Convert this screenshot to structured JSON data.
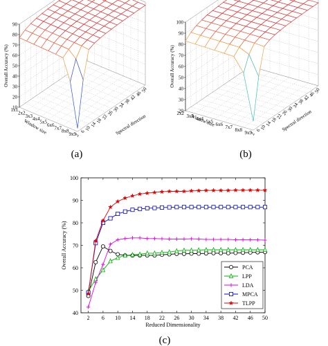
{
  "chart_data": [
    {
      "type": "surface",
      "caption": "(a)",
      "zlabel": "Overall Accuracy (%)",
      "xlabel": "Window size",
      "ylabel": "Spectral direction",
      "zlim": [
        10,
        90
      ],
      "z_ticks": [
        "10",
        "20",
        "30",
        "40",
        "50",
        "60",
        "70",
        "80",
        "90"
      ],
      "window_ticks": [
        "1x1",
        "2x2",
        "3x3",
        "4x4",
        "5x5",
        "6x6",
        "7x7",
        "8x8",
        "9x9"
      ],
      "spectral_ticks": [
        "2",
        "6",
        "10",
        "14",
        "18",
        "22",
        "26",
        "30",
        "34",
        "38",
        "42",
        "46",
        "50"
      ],
      "min_value": 13,
      "plateau_value": 87,
      "front_value": 77
    },
    {
      "type": "surface",
      "caption": "(b)",
      "zlabel": "Overall Accuracy (%)",
      "xlabel": "Window size",
      "ylabel": "Spectral direction",
      "zlim": [
        20,
        100
      ],
      "z_ticks": [
        "20",
        "30",
        "40",
        "50",
        "60",
        "70",
        "80",
        "90",
        "100"
      ],
      "window_ticks": [
        "2x2",
        "3x3",
        "4x4",
        "5x5",
        "6x6",
        "7x7",
        "8x8",
        "9x9"
      ],
      "spectral_ticks": [
        "2",
        "6",
        "10",
        "14",
        "18",
        "22",
        "26",
        "30",
        "34",
        "38",
        "42",
        "46",
        "50"
      ],
      "min_value": 28,
      "plateau_value": 95,
      "front_value": 83
    },
    {
      "type": "line",
      "caption": "(c)",
      "xlabel": "Reduced Dimensionality",
      "ylabel": "Overall Accuracy (%)",
      "xlim": [
        0,
        50
      ],
      "ylim": [
        40,
        100
      ],
      "x_ticks": [
        2,
        6,
        10,
        14,
        18,
        22,
        26,
        30,
        34,
        38,
        42,
        46,
        50
      ],
      "y_ticks": [
        40,
        50,
        60,
        70,
        80,
        90,
        100
      ],
      "grid": false,
      "legend_position": "bottom-right",
      "x": [
        2,
        4,
        6,
        8,
        10,
        12,
        14,
        16,
        18,
        20,
        22,
        24,
        26,
        28,
        30,
        32,
        34,
        36,
        38,
        40,
        42,
        44,
        46,
        48,
        50
      ],
      "series": [
        {
          "name": "PCA",
          "color": "#000000",
          "marker": "circle",
          "values": [
            47.5,
            62.5,
            69.5,
            67.5,
            66.0,
            65.5,
            65.5,
            65.5,
            65.5,
            65.5,
            65.8,
            66.0,
            66.2,
            66.2,
            66.3,
            66.3,
            66.4,
            66.5,
            66.5,
            66.5,
            66.6,
            66.7,
            66.8,
            66.9,
            67.0
          ]
        },
        {
          "name": "LPP",
          "color": "#00b000",
          "marker": "triangle",
          "values": [
            49.5,
            55.0,
            59.0,
            63.0,
            64.5,
            65.5,
            65.8,
            66.0,
            66.5,
            66.5,
            66.8,
            67.0,
            67.5,
            67.8,
            67.8,
            67.9,
            68.0,
            68.0,
            68.0,
            68.0,
            68.0,
            68.0,
            68.0,
            68.0,
            68.0
          ]
        },
        {
          "name": "LDA",
          "color": "#e000e0",
          "marker": "plus",
          "values": [
            42.5,
            53.5,
            61.5,
            70.5,
            72.5,
            73.0,
            73.3,
            73.3,
            73.0,
            73.0,
            72.9,
            72.8,
            72.8,
            72.8,
            72.9,
            72.8,
            72.6,
            72.6,
            72.6,
            72.6,
            72.5,
            72.5,
            72.5,
            72.4,
            72.3
          ]
        },
        {
          "name": "MPCA",
          "color": "#0000cc",
          "marker": "square",
          "values": [
            49.0,
            71.0,
            80.0,
            82.0,
            84.0,
            85.0,
            85.8,
            86.2,
            86.5,
            86.6,
            86.8,
            86.9,
            87.0,
            87.0,
            87.0,
            87.0,
            87.0,
            87.0,
            87.0,
            87.0,
            87.0,
            87.0,
            87.0,
            87.0,
            87.0
          ]
        },
        {
          "name": "TLPP",
          "color": "#e00000",
          "marker": "star",
          "values": [
            48.5,
            72.0,
            81.0,
            87.0,
            89.5,
            91.0,
            92.0,
            92.8,
            93.2,
            93.5,
            93.8,
            94.0,
            94.0,
            94.0,
            94.2,
            94.3,
            94.4,
            94.4,
            94.4,
            94.4,
            94.5,
            94.5,
            94.5,
            94.5,
            94.5
          ]
        }
      ]
    }
  ]
}
